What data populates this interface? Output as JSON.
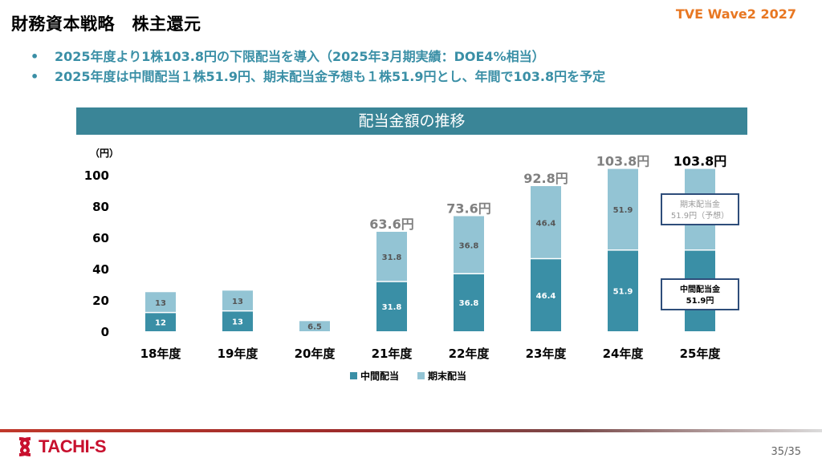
{
  "title": "財務資本戦略　株主還元",
  "badge": "TVE Wave2 2027",
  "bullets": [
    "2025年度より1株103.8円の下限配当を導入（2025年3月期実績：DOE4%相当）",
    "2025年度は中間配当１株51.9円、期末配当金予想も１株51.9円とし、年間で103.8円を予定"
  ],
  "bullet_marker": "•",
  "chart_header": "配当金額の推移",
  "page_number": "35/35",
  "logo_text": "TACHI-S",
  "colors": {
    "interim": "#3a8fa6",
    "yearend": "#93c4d4",
    "header": "#3a8597",
    "accent": "#e87722",
    "brand": "#c8102e"
  },
  "chart_data": {
    "type": "bar",
    "stacked": true,
    "title": "配当金額の推移",
    "ylabel": "（円）",
    "ylim": [
      0,
      100
    ],
    "yticks": [
      0,
      20,
      40,
      60,
      80,
      100
    ],
    "categories": [
      "18年度",
      "19年度",
      "20年度",
      "21年度",
      "22年度",
      "23年度",
      "24年度",
      "25年度"
    ],
    "series": [
      {
        "name": "中間配当",
        "values": [
          12,
          13,
          0,
          31.8,
          36.8,
          46.4,
          51.9,
          51.9
        ],
        "labels": [
          "12",
          "13",
          "",
          "31.8",
          "36.8",
          "46.4",
          "51.9",
          ""
        ]
      },
      {
        "name": "期末配当",
        "values": [
          13,
          13,
          6.5,
          31.8,
          36.8,
          46.4,
          51.9,
          51.9
        ],
        "labels": [
          "13",
          "13",
          "6.5",
          "31.8",
          "36.8",
          "46.4",
          "51.9",
          ""
        ]
      }
    ],
    "totals": [
      "",
      "",
      "",
      "63.6円",
      "73.6円",
      "92.8円",
      "103.8円",
      "103.8円"
    ],
    "annotations": {
      "yearend_forecast": [
        "期末配当金",
        "51.9円（予想）"
      ],
      "interim_2025": [
        "中間配当金",
        "51.9円"
      ]
    },
    "legend": [
      "中間配当",
      "期末配当"
    ],
    "legend_position": "bottom"
  }
}
